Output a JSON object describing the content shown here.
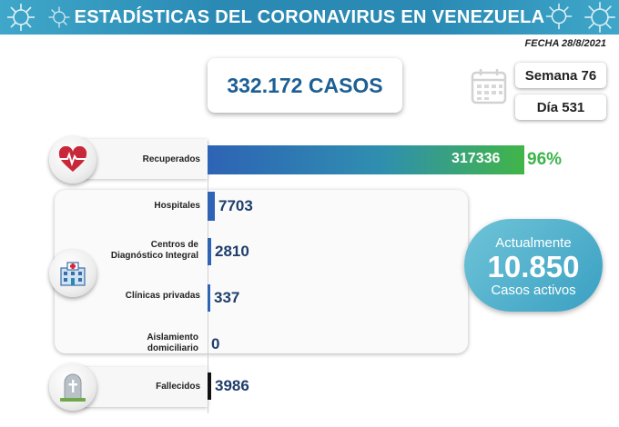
{
  "header": {
    "title": "ESTADÍSTICAS DEL CORONAVIRUS EN VENEZUELA"
  },
  "fecha": "FECHA 28/8/2021",
  "summary": {
    "casos": "332.172 CASOS",
    "semana": "Semana 76",
    "dia": "Día 531"
  },
  "active": {
    "top": "Actualmente",
    "value": "10.850",
    "bottom": "Casos activos"
  },
  "colors": {
    "banner": "#2a8ab4",
    "bar_blue": "#2e63b5",
    "bar_green": "#41b548",
    "deaths": "#111111",
    "value_text": "#1f3e6b",
    "pct_text": "#3ab54a"
  },
  "icons": [
    "heart-monitor-icon",
    "hospital-icon",
    "gravestone-icon",
    "calendar-icon",
    "virus-icon"
  ],
  "chart_data": {
    "type": "bar",
    "orientation": "horizontal",
    "categories": [
      "Recuperados",
      "Hospitales",
      "Centros de Diagnóstico Integral",
      "Clínicas privadas",
      "Aislamiento domiciliario",
      "Fallecidos"
    ],
    "values": [
      317336,
      7703,
      2810,
      337,
      0,
      3986
    ],
    "value_labels": [
      "317336",
      "7703",
      "2810",
      "337",
      "0",
      "3986"
    ],
    "percent_labels": [
      "96%",
      "",
      "",
      "",
      "",
      ""
    ],
    "xlim": [
      0,
      317336
    ]
  }
}
